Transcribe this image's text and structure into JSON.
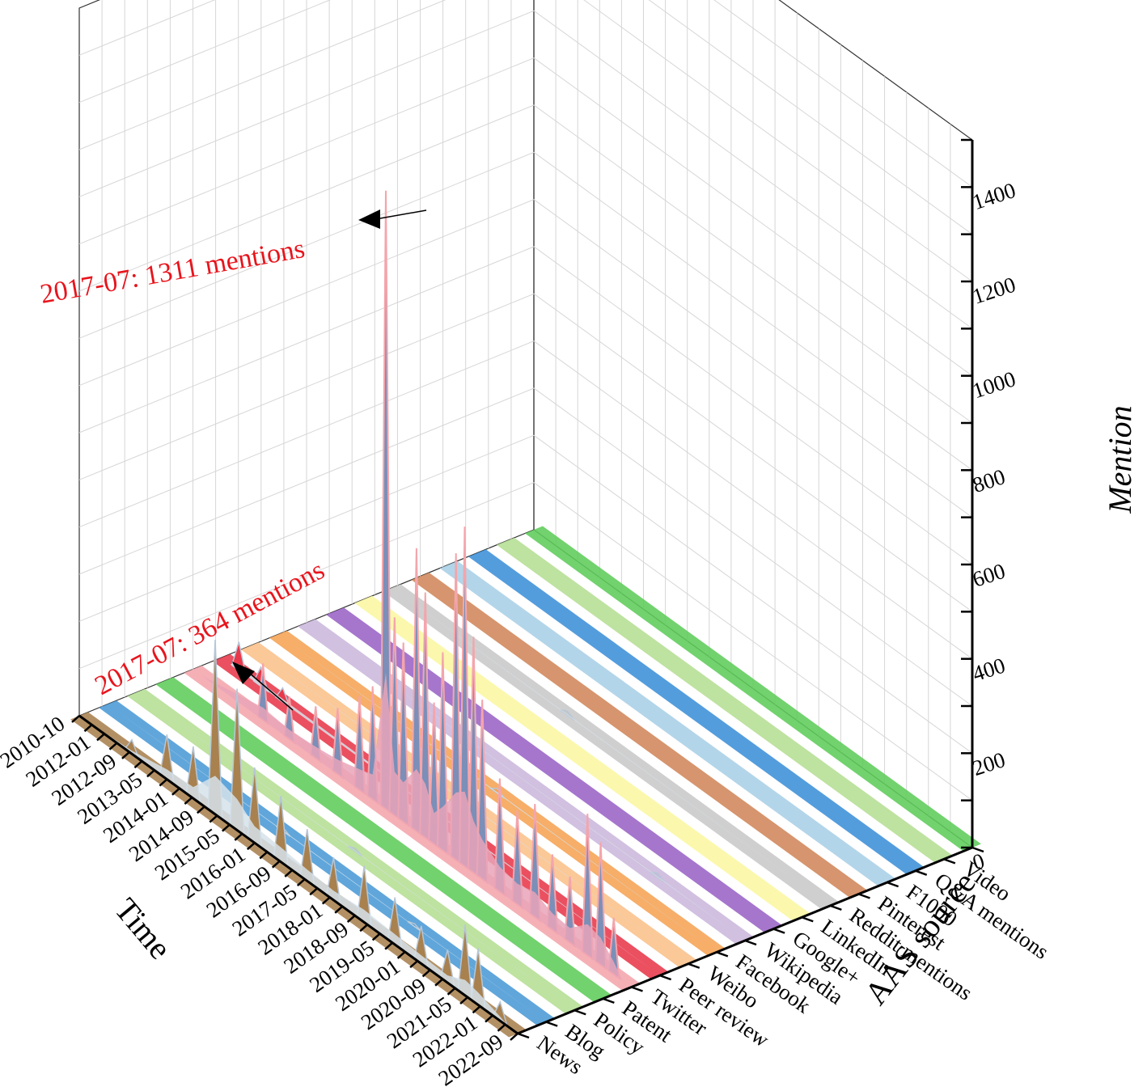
{
  "chart_data": {
    "type": "area",
    "view": "3d-waterfall",
    "xlabel": "Time",
    "ylabel": "AAS source",
    "zlabel": "Mention",
    "zlim": [
      0,
      1500
    ],
    "z_ticks": [
      0,
      200,
      400,
      600,
      800,
      1000,
      1200,
      1400
    ],
    "time_ticks": [
      "2010-10",
      "2012-01",
      "2012-09",
      "2013-05",
      "2014-01",
      "2014-09",
      "2015-05",
      "2016-01",
      "2016-09",
      "2017-05",
      "2018-01",
      "2018-09",
      "2019-05",
      "2020-01",
      "2020-09",
      "2021-05",
      "2022-01",
      "2022-09"
    ],
    "grid": true,
    "series": [
      {
        "name": "News",
        "color": "#a8814f",
        "peaks": [
          {
            "t": 0.12,
            "v": 30
          },
          {
            "t": 0.2,
            "v": 95
          },
          {
            "t": 0.26,
            "v": 110
          },
          {
            "t": 0.31,
            "v": 370
          },
          {
            "t": 0.36,
            "v": 300
          },
          {
            "t": 0.4,
            "v": 160
          },
          {
            "t": 0.46,
            "v": 140
          },
          {
            "t": 0.52,
            "v": 110
          },
          {
            "t": 0.58,
            "v": 90
          },
          {
            "t": 0.65,
            "v": 120
          },
          {
            "t": 0.72,
            "v": 100
          },
          {
            "t": 0.78,
            "v": 80
          },
          {
            "t": 0.84,
            "v": 70
          },
          {
            "t": 0.88,
            "v": 150
          },
          {
            "t": 0.91,
            "v": 120
          },
          {
            "t": 0.96,
            "v": 40
          }
        ]
      },
      {
        "name": "Blog",
        "color": "#4a9ad6",
        "peaks": [
          {
            "t": 0.4,
            "v": 8
          },
          {
            "t": 0.7,
            "v": 6
          }
        ]
      },
      {
        "name": "Policy",
        "color": "#b5de93",
        "peaks": [
          {
            "t": 0.5,
            "v": 6
          }
        ]
      },
      {
        "name": "Patent",
        "color": "#5fcc5a",
        "peaks": []
      },
      {
        "name": "Twitter",
        "color": "#f4a5ac",
        "peaks": [
          {
            "t": 0.16,
            "v": 120
          },
          {
            "t": 0.22,
            "v": 90
          },
          {
            "t": 0.28,
            "v": 110
          },
          {
            "t": 0.33,
            "v": 140
          },
          {
            "t": 0.38,
            "v": 200
          },
          {
            "t": 0.41,
            "v": 240
          },
          {
            "t": 0.44,
            "v": 1311
          },
          {
            "t": 0.46,
            "v": 420
          },
          {
            "t": 0.48,
            "v": 380
          },
          {
            "t": 0.51,
            "v": 600
          },
          {
            "t": 0.53,
            "v": 520
          },
          {
            "t": 0.55,
            "v": 300
          },
          {
            "t": 0.57,
            "v": 420
          },
          {
            "t": 0.6,
            "v": 650
          },
          {
            "t": 0.62,
            "v": 720
          },
          {
            "t": 0.64,
            "v": 500
          },
          {
            "t": 0.66,
            "v": 380
          },
          {
            "t": 0.7,
            "v": 240
          },
          {
            "t": 0.74,
            "v": 200
          },
          {
            "t": 0.78,
            "v": 240
          },
          {
            "t": 0.82,
            "v": 160
          },
          {
            "t": 0.86,
            "v": 140
          },
          {
            "t": 0.9,
            "v": 300
          },
          {
            "t": 0.93,
            "v": 260
          },
          {
            "t": 0.96,
            "v": 120
          }
        ]
      },
      {
        "name": "Peer review",
        "color": "#e8384a",
        "peaks": [
          {
            "t": 0.04,
            "v": 60
          },
          {
            "t": 0.09,
            "v": 40
          },
          {
            "t": 0.14,
            "v": 30
          }
        ]
      },
      {
        "name": "Weibo",
        "color": "#fbc08a",
        "peaks": [
          {
            "t": 0.4,
            "v": 8
          }
        ]
      },
      {
        "name": "Facebook",
        "color": "#f5a354",
        "peaks": [
          {
            "t": 0.5,
            "v": 10
          }
        ]
      },
      {
        "name": "Wikipedia",
        "color": "#cbb7dc",
        "peaks": [
          {
            "t": 0.8,
            "v": 8
          }
        ]
      },
      {
        "name": "Google+",
        "color": "#9a63c6",
        "peaks": []
      },
      {
        "name": "LinkedIn",
        "color": "#fbf7a2",
        "peaks": []
      },
      {
        "name": "Reddit mentions",
        "color": "#c8c8c8",
        "peaks": [
          {
            "t": 0.4,
            "v": 8
          }
        ]
      },
      {
        "name": "Pinterest",
        "color": "#d0865a",
        "peaks": []
      },
      {
        "name": "F1000",
        "color": "#a9cfe6",
        "peaks": []
      },
      {
        "name": "Q&A mentions",
        "color": "#3c8fd8",
        "peaks": []
      },
      {
        "name": "Video",
        "color": "#b5de93",
        "peaks": []
      },
      {
        "name": "",
        "color": "#5fcc5a",
        "peaks": []
      }
    ],
    "annotations": [
      {
        "text": "2017-07: 1311 mentions",
        "series": "Twitter",
        "value": 1311
      },
      {
        "text": "2017-07: 364 mentions",
        "series": "News",
        "value": 364
      }
    ]
  }
}
